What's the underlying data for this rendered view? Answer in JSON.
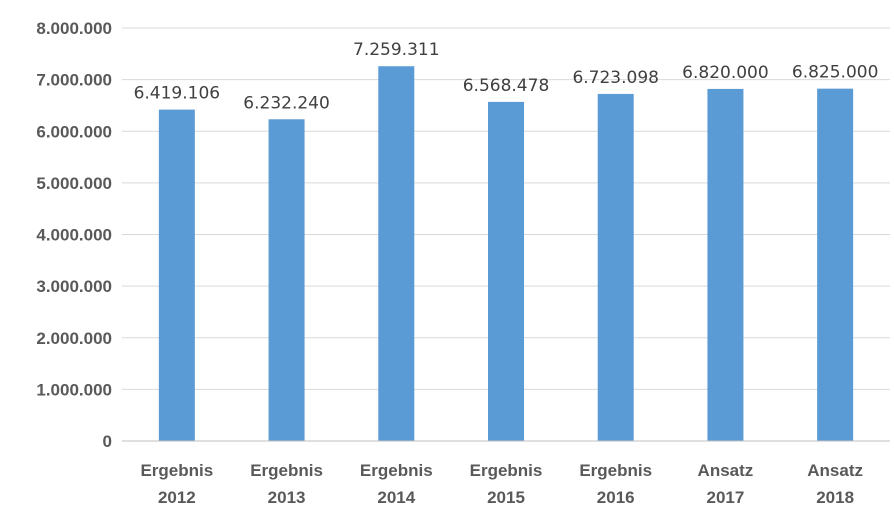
{
  "chart_data": {
    "type": "bar",
    "categories": [
      [
        "Ergebnis",
        "2012"
      ],
      [
        "Ergebnis",
        "2013"
      ],
      [
        "Ergebnis",
        "2014"
      ],
      [
        "Ergebnis",
        "2015"
      ],
      [
        "Ergebnis",
        "2016"
      ],
      [
        "Ansatz",
        "2017"
      ],
      [
        "Ansatz",
        "2018"
      ]
    ],
    "values": [
      6419106,
      6232240,
      7259311,
      6568478,
      6723098,
      6820000,
      6825000
    ],
    "value_labels": [
      "6.419.106",
      "6.232.240",
      "7.259.311",
      "6.568.478",
      "6.723.098",
      "6.820.000",
      "6.825.000"
    ],
    "yticks": [
      0,
      1000000,
      2000000,
      3000000,
      4000000,
      5000000,
      6000000,
      7000000,
      8000000
    ],
    "ytick_labels": [
      "0",
      "1.000.000",
      "2.000.000",
      "3.000.000",
      "4.000.000",
      "5.000.000",
      "6.000.000",
      "7.000.000",
      "8.000.000"
    ],
    "ylim": [
      0,
      8000000
    ],
    "grid": true,
    "legend": "none",
    "bar_color": "#5b9bd5"
  }
}
